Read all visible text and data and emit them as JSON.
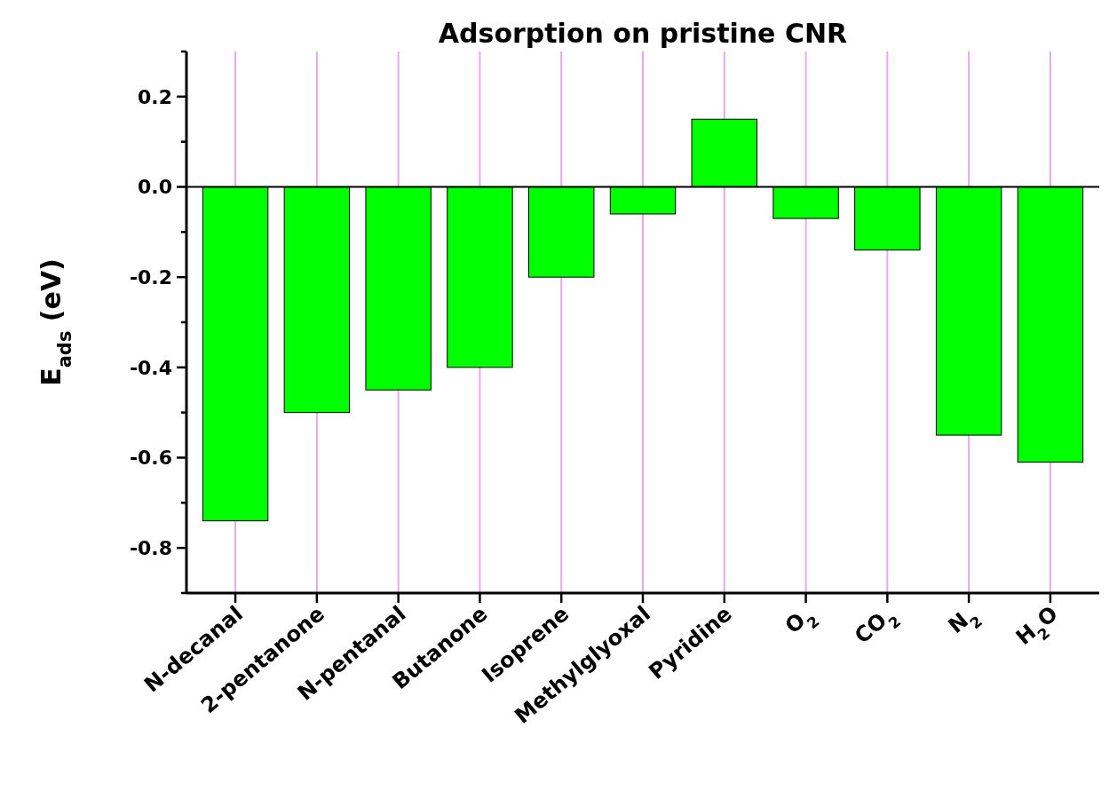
{
  "chart_data": {
    "type": "bar",
    "title": "Adsorption on pristine CNR",
    "ylabel": "E$_{ads}$ (eV)",
    "categories": [
      "N-decanal",
      "2-pentanone",
      "N-pentanal",
      "Butanone",
      "Isoprene",
      "Methylglyoxal",
      "Pyridine",
      "O$_{2}$",
      "CO$_{2}$",
      "N$_{2}$",
      "H$_{2}$O"
    ],
    "values": [
      -0.74,
      -0.5,
      -0.45,
      -0.4,
      -0.2,
      -0.06,
      0.15,
      -0.07,
      -0.14,
      -0.55,
      -0.61
    ],
    "color": "#00ff00",
    "ylim": [
      -0.9,
      0.3
    ],
    "yticks": [
      {
        "value": -0.9,
        "label": null
      },
      {
        "value": -0.8,
        "label": "-0.8"
      },
      {
        "value": -0.7,
        "label": null
      },
      {
        "value": -0.6,
        "label": "-0.6"
      },
      {
        "value": -0.5,
        "label": null
      },
      {
        "value": -0.4,
        "label": "-0.4"
      },
      {
        "value": -0.3,
        "label": null
      },
      {
        "value": -0.2,
        "label": "-0.2"
      },
      {
        "value": -0.1,
        "label": null
      },
      {
        "value": 0,
        "label": "0.0"
      },
      {
        "value": 0.1,
        "label": null
      },
      {
        "value": 0.2,
        "label": "0.2"
      },
      {
        "value": 0.3,
        "label": null
      }
    ],
    "ref_lines": [
      {
        "axis": "y",
        "value": 0,
        "color": "#000000"
      }
    ],
    "grid": "x"
  }
}
